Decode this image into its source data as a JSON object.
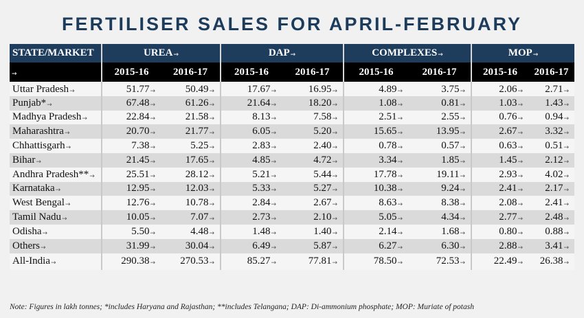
{
  "title": "FERTILISER SALES FOR APRIL-FEBRUARY",
  "chart_data": {
    "type": "table",
    "title": "FERTILISER SALES FOR APRIL-FEBRUARY",
    "row_header": "STATE/MARKET",
    "column_groups": [
      "UREA",
      "DAP",
      "COMPLEXES",
      "MOP"
    ],
    "years": [
      "2015-16",
      "2016-17"
    ],
    "rows": [
      {
        "state": "Uttar Pradesh",
        "values": [
          "51.77",
          "50.49",
          "17.67",
          "16.95",
          "4.89",
          "3.75",
          "2.06",
          "2.71"
        ]
      },
      {
        "state": "Punjab*",
        "values": [
          "67.48",
          "61.26",
          "21.64",
          "18.20",
          "1.08",
          "0.81",
          "1.03",
          "1.43"
        ]
      },
      {
        "state": "Madhya Pradesh",
        "values": [
          "22.84",
          "21.58",
          "8.13",
          "7.58",
          "2.51",
          "2.55",
          "0.76",
          "0.94"
        ]
      },
      {
        "state": "Maharashtra",
        "values": [
          "20.70",
          "21.77",
          "6.05",
          "5.20",
          "15.65",
          "13.95",
          "2.67",
          "3.32"
        ]
      },
      {
        "state": "Chhattisgarh",
        "values": [
          "7.38",
          "5.25",
          "2.83",
          "2.40",
          "0.78",
          "0.57",
          "0.63",
          "0.51"
        ]
      },
      {
        "state": "Bihar",
        "values": [
          "21.45",
          "17.65",
          "4.85",
          "4.72",
          "3.34",
          "1.85",
          "1.45",
          "2.12"
        ]
      },
      {
        "state": "Andhra Pradesh**",
        "values": [
          "25.51",
          "28.12",
          "5.21",
          "5.44",
          "17.78",
          "19.11",
          "2.93",
          "4.02"
        ]
      },
      {
        "state": "Karnataka",
        "values": [
          "12.95",
          "12.03",
          "5.33",
          "5.27",
          "10.38",
          "9.24",
          "2.41",
          "2.17"
        ]
      },
      {
        "state": "West Bengal",
        "values": [
          "12.76",
          "10.78",
          "2.84",
          "2.67",
          "8.63",
          "8.38",
          "2.08",
          "2.41"
        ]
      },
      {
        "state": "Tamil Nadu",
        "values": [
          "10.05",
          "7.07",
          "2.73",
          "2.10",
          "5.05",
          "4.34",
          "2.77",
          "2.48"
        ]
      },
      {
        "state": "Odisha",
        "values": [
          "5.50",
          "4.48",
          "1.48",
          "1.40",
          "2.14",
          "1.68",
          "0.80",
          "0.88"
        ]
      },
      {
        "state": "Others",
        "values": [
          "31.99",
          "30.04",
          "6.49",
          "5.87",
          "6.27",
          "6.30",
          "2.88",
          "3.41"
        ]
      },
      {
        "state": "All-India",
        "values": [
          "290.38",
          "270.53",
          "85.27",
          "77.81",
          "78.50",
          "72.53",
          "22.49",
          "26.38"
        ]
      }
    ]
  },
  "note": "Note: Figures in lakh tonnes; *includes Haryana and Rajasthan; **includes Telangana; DAP: Di-ammonium phosphate; MOP: Muriate of potash",
  "colors": {
    "header_blue": "#1e3d5d",
    "title_blue": "#1d3c5c",
    "row_light": "#f5f5f5",
    "row_dark": "#dadada"
  }
}
